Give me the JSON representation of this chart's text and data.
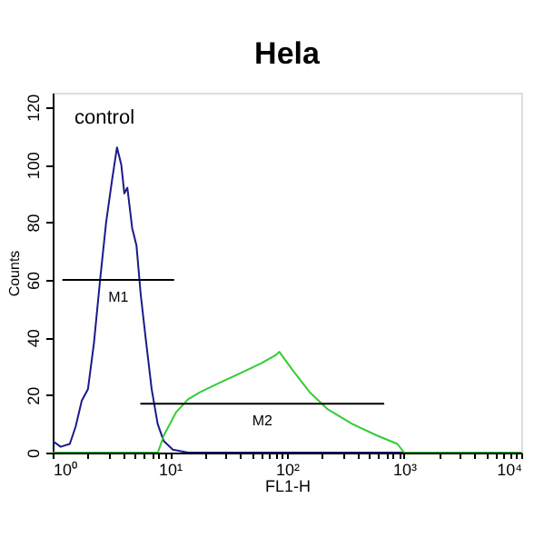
{
  "chart_data": {
    "type": "line",
    "title": "Hela",
    "xlabel": "FL1-H",
    "ylabel": "Counts",
    "log": "x",
    "xlim": [
      1,
      10000
    ],
    "ylim": [
      0,
      125
    ],
    "xticks": [
      {
        "value": 1,
        "label": "10⁰"
      },
      {
        "value": 2,
        "label": null
      },
      {
        "value": 3,
        "label": null
      },
      {
        "value": 4,
        "label": null
      },
      {
        "value": 5,
        "label": null
      },
      {
        "value": 6,
        "label": null
      },
      {
        "value": 7,
        "label": null
      },
      {
        "value": 8,
        "label": null
      },
      {
        "value": 9,
        "label": null
      },
      {
        "value": 10,
        "label": "10¹"
      },
      {
        "value": 20,
        "label": null
      },
      {
        "value": 30,
        "label": null
      },
      {
        "value": 40,
        "label": null
      },
      {
        "value": 50,
        "label": null
      },
      {
        "value": 60,
        "label": null
      },
      {
        "value": 70,
        "label": null
      },
      {
        "value": 80,
        "label": null
      },
      {
        "value": 90,
        "label": null
      },
      {
        "value": 100,
        "label": "10²"
      },
      {
        "value": 200,
        "label": null
      },
      {
        "value": 300,
        "label": null
      },
      {
        "value": 400,
        "label": null
      },
      {
        "value": 500,
        "label": null
      },
      {
        "value": 600,
        "label": null
      },
      {
        "value": 700,
        "label": null
      },
      {
        "value": 800,
        "label": null
      },
      {
        "value": 900,
        "label": null
      },
      {
        "value": 1000,
        "label": "10³"
      },
      {
        "value": 2000,
        "label": null
      },
      {
        "value": 3000,
        "label": null
      },
      {
        "value": 4000,
        "label": null
      },
      {
        "value": 5000,
        "label": null
      },
      {
        "value": 6000,
        "label": null
      },
      {
        "value": 7000,
        "label": null
      },
      {
        "value": 8000,
        "label": null
      },
      {
        "value": 9000,
        "label": null
      },
      {
        "value": 10000,
        "label": "10⁴"
      }
    ],
    "yticks": [
      0,
      20,
      40,
      60,
      80,
      100,
      120
    ],
    "grid": false,
    "legend": false,
    "marker": "none",
    "line_style": "solid",
    "annotations": [
      "control"
    ],
    "series": [
      {
        "color": "#1a1a8c",
        "x": [
          1,
          1.17,
          1.4,
          1.57,
          1.77,
          2.0,
          2.25,
          2.54,
          2.86,
          3.22,
          3.54,
          3.85,
          4.09,
          4.34,
          4.77,
          5.19,
          5.64,
          6.21,
          7.0,
          7.87,
          8.87,
          10.6,
          14.3,
          100,
          1000,
          10000
        ],
        "values": [
          4,
          2,
          3,
          9,
          18,
          22,
          38,
          60,
          80,
          95,
          106,
          100,
          90,
          92,
          78,
          72,
          55,
          40,
          22,
          10,
          4,
          1,
          0,
          0,
          0,
          0
        ]
      },
      {
        "color": "#33cc33",
        "x": [
          1,
          7.9,
          8.9,
          11.3,
          14.3,
          18.2,
          25.9,
          41.9,
          60,
          81,
          86,
          110,
          156,
          223,
          359,
          580,
          876,
          1000,
          10000
        ],
        "values": [
          0,
          0,
          6,
          14,
          18.5,
          21,
          24,
          28,
          31,
          34,
          35,
          29,
          21,
          15,
          10,
          6,
          3,
          0,
          0
        ]
      },
      {
        "name": "M1",
        "color": "#000000",
        "x": [
          1.21,
          10.9
        ],
        "values": [
          60,
          60
        ]
      },
      {
        "name": "M2",
        "color": "#000000",
        "x": [
          5.6,
          676
        ],
        "values": [
          17,
          17
        ]
      }
    ]
  }
}
